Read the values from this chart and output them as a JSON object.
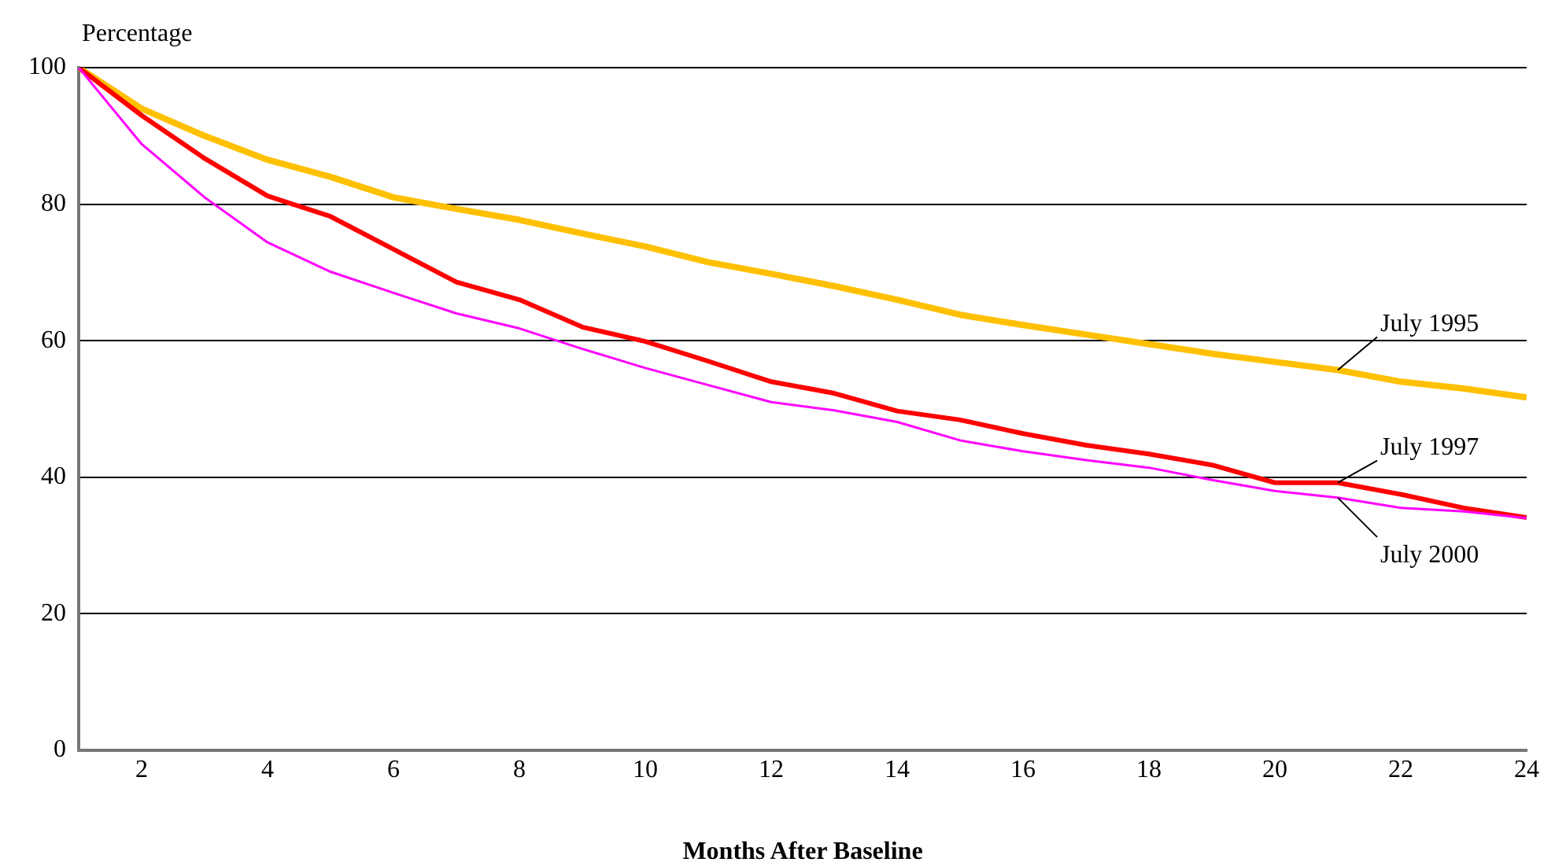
{
  "chart_data": {
    "type": "line",
    "xlabel": "Months After Baseline",
    "ylabel": "Percentage",
    "x": [
      1,
      2,
      3,
      4,
      5,
      6,
      7,
      8,
      9,
      10,
      11,
      12,
      13,
      14,
      15,
      16,
      17,
      18,
      19,
      20,
      21,
      22,
      23,
      24
    ],
    "xlim": [
      1,
      24
    ],
    "xticks": [
      2,
      4,
      6,
      8,
      10,
      12,
      14,
      16,
      18,
      20,
      22,
      24
    ],
    "ylim": [
      0,
      100
    ],
    "yticks": [
      0,
      20,
      40,
      60,
      80,
      100
    ],
    "grid": "y",
    "series": [
      {
        "name": "July 1995",
        "color": "#ffc000",
        "values": [
          100,
          94,
          90,
          86.5,
          84,
          81,
          79.3,
          77.7,
          75.7,
          73.8,
          71.5,
          69.8,
          68,
          66,
          63.8,
          62.3,
          60.9,
          59.5,
          58.1,
          56.9,
          55.7,
          54,
          53,
          51.7
        ]
      },
      {
        "name": "July 1997",
        "color": "#ff0000",
        "values": [
          100,
          93,
          86.7,
          81.2,
          78.2,
          73.4,
          68.6,
          66,
          62,
          59.9,
          57,
          54,
          52.3,
          49.7,
          48.4,
          46.4,
          44.7,
          43.4,
          41.8,
          39.2,
          39.2,
          37.5,
          35.5,
          34.1
        ]
      },
      {
        "name": "July 2000",
        "color": "#ff00ff",
        "values": [
          100,
          88.8,
          81,
          74.4,
          70.1,
          67,
          64,
          61.8,
          58.8,
          56,
          53.5,
          51,
          49.8,
          48.1,
          45.4,
          43.8,
          42.5,
          41.4,
          39.6,
          38,
          37,
          35.5,
          35,
          34
        ]
      }
    ]
  }
}
